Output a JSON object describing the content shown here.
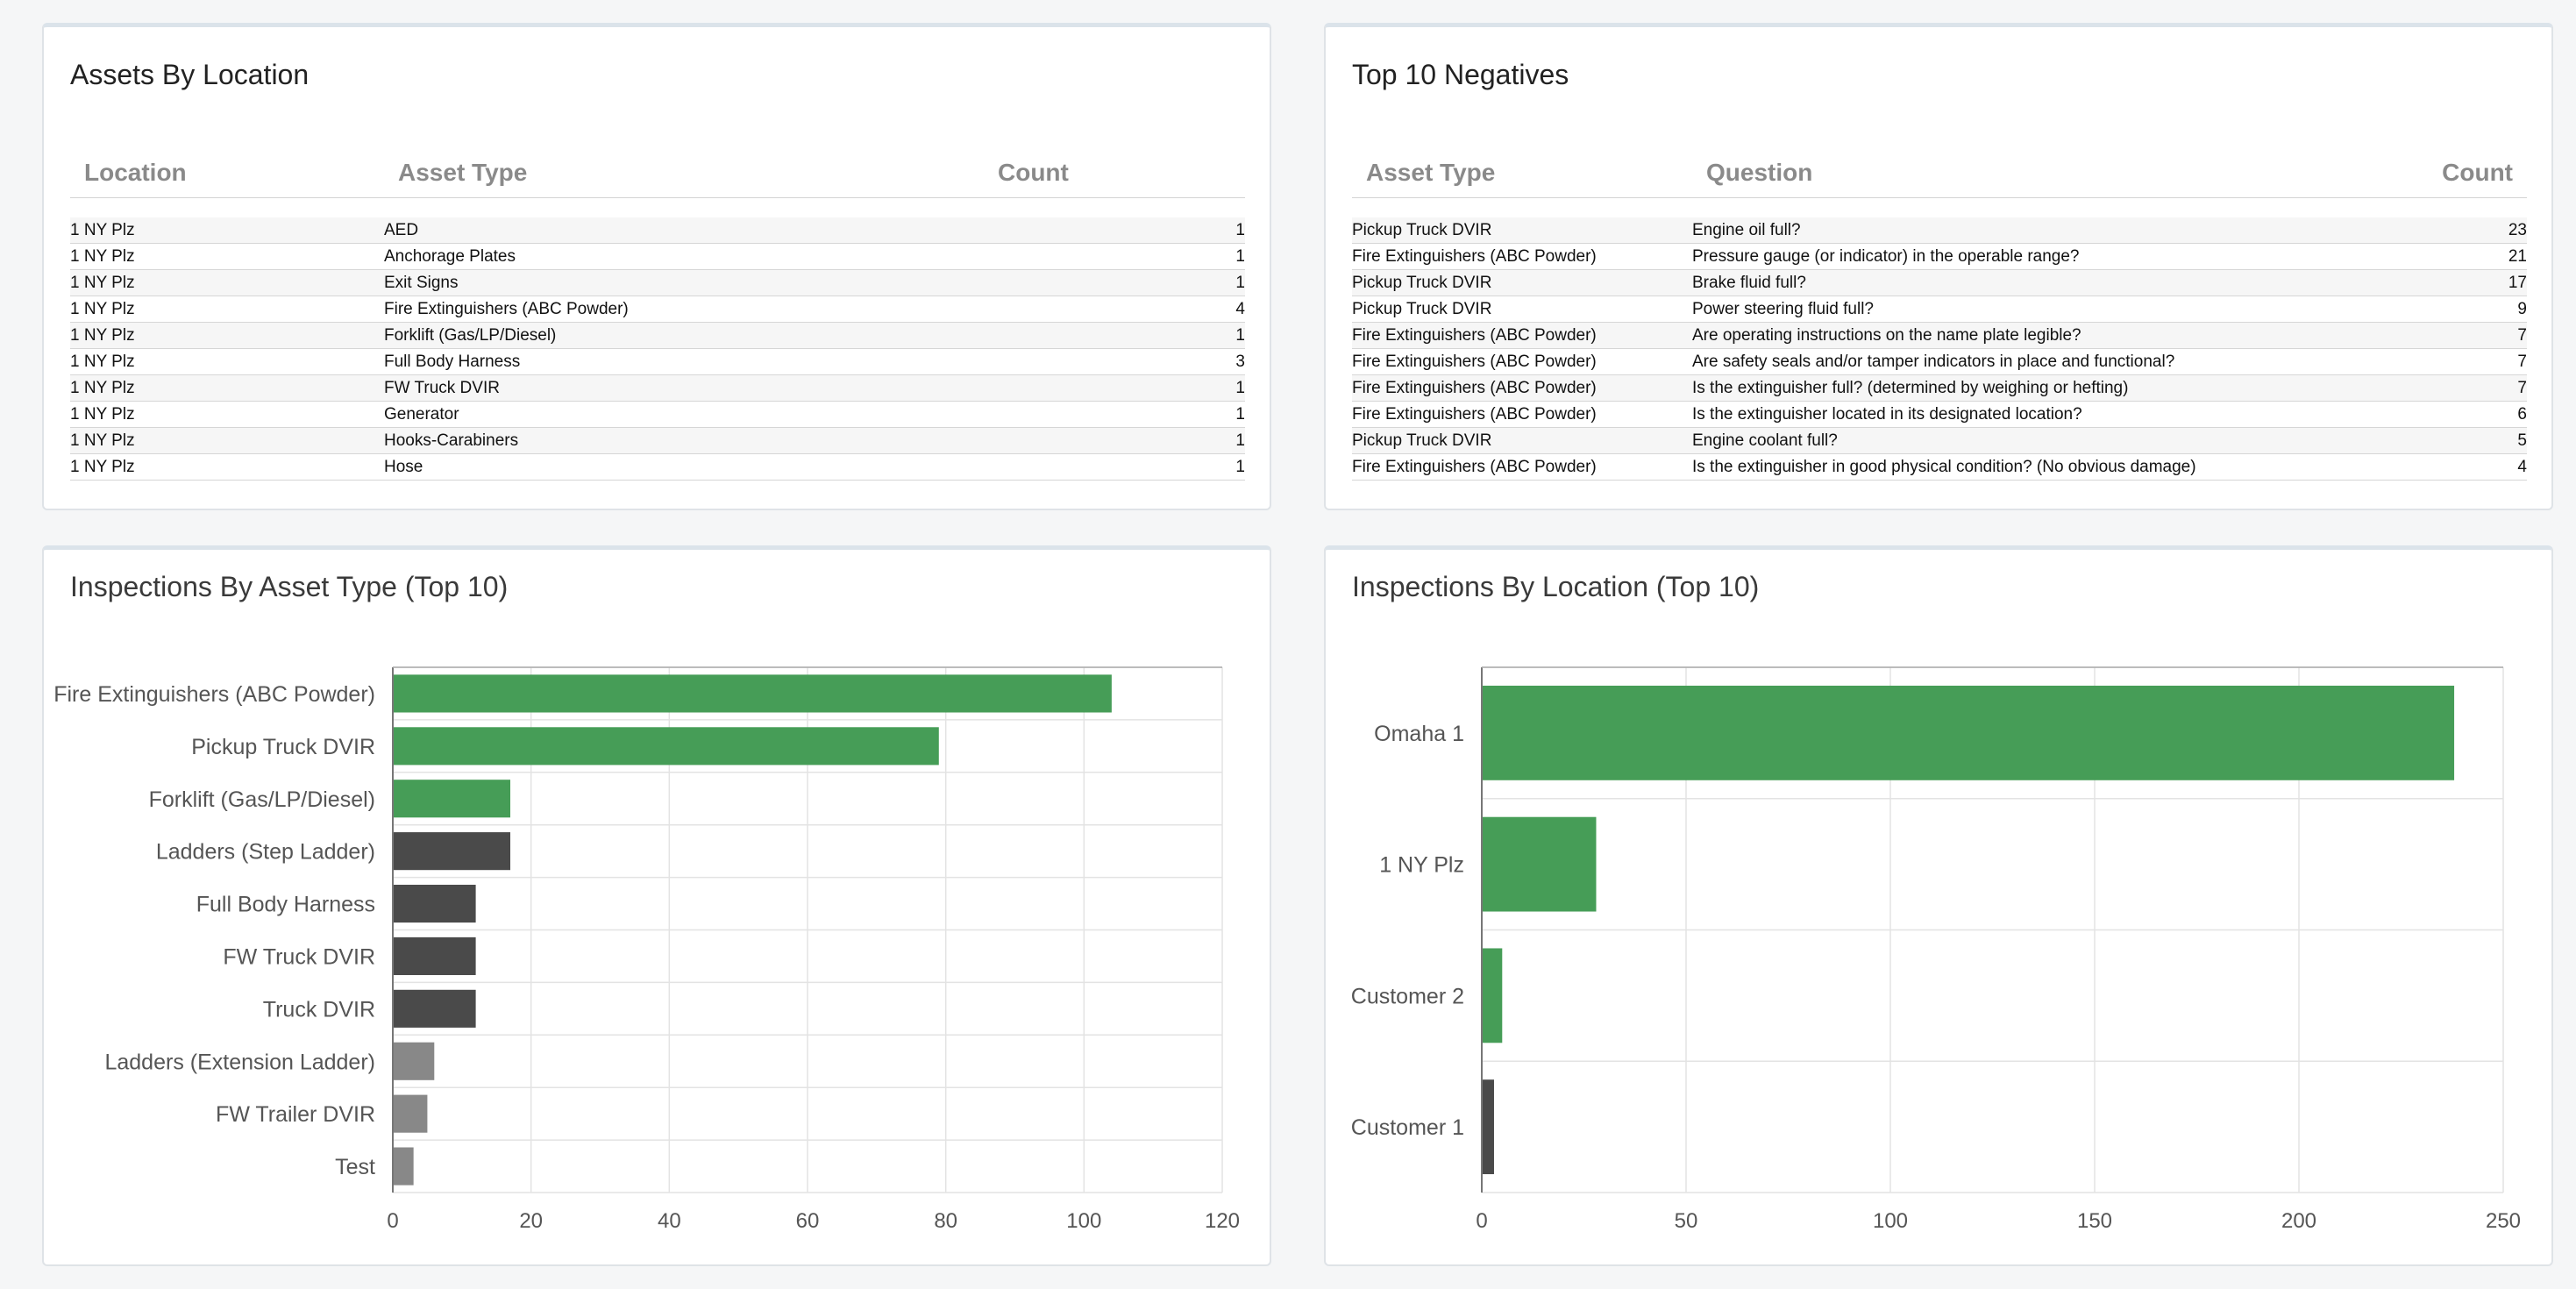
{
  "assets_by_location": {
    "title": "Assets By Location",
    "columns": [
      "Location",
      "Asset Type",
      "Count"
    ],
    "rows": [
      [
        "1 NY Plz",
        "AED",
        "1"
      ],
      [
        "1 NY Plz",
        "Anchorage Plates",
        "1"
      ],
      [
        "1 NY Plz",
        "Exit Signs",
        "1"
      ],
      [
        "1 NY Plz",
        "Fire Extinguishers (ABC Powder)",
        "4"
      ],
      [
        "1 NY Plz",
        "Forklift (Gas/LP/Diesel)",
        "1"
      ],
      [
        "1 NY Plz",
        "Full Body Harness",
        "3"
      ],
      [
        "1 NY Plz",
        "FW Truck DVIR",
        "1"
      ],
      [
        "1 NY Plz",
        "Generator",
        "1"
      ],
      [
        "1 NY Plz",
        "Hooks-Carabiners",
        "1"
      ],
      [
        "1 NY Plz",
        "Hose",
        "1"
      ]
    ]
  },
  "top_negatives": {
    "title": "Top 10 Negatives",
    "columns": [
      "Asset Type",
      "Question",
      "Count"
    ],
    "rows": [
      [
        "Pickup Truck DVIR",
        "Engine oil full?",
        "23"
      ],
      [
        "Fire Extinguishers (ABC Powder)",
        "Pressure gauge (or indicator) in the operable range?",
        "21"
      ],
      [
        "Pickup Truck DVIR",
        "Brake fluid full?",
        "17"
      ],
      [
        "Pickup Truck DVIR",
        "Power steering fluid full?",
        "9"
      ],
      [
        "Fire Extinguishers (ABC Powder)",
        "Are operating instructions on the name plate legible?",
        "7"
      ],
      [
        "Fire Extinguishers (ABC Powder)",
        "Are safety seals and/or tamper indicators in place and functional?",
        "7"
      ],
      [
        "Fire Extinguishers (ABC Powder)",
        "Is the extinguisher full? (determined by weighing or hefting)",
        "7"
      ],
      [
        "Fire Extinguishers (ABC Powder)",
        "Is the extinguisher located in its designated location?",
        "6"
      ],
      [
        "Pickup Truck DVIR",
        "Engine coolant full?",
        "5"
      ],
      [
        "Fire Extinguishers (ABC Powder)",
        "Is the extinguisher in good physical condition? (No obvious damage)",
        "4"
      ]
    ]
  },
  "inspections_by_asset_type": {
    "title": "Inspections By Asset Type (Top 10)"
  },
  "inspections_by_location": {
    "title": "Inspections By Location (Top 10)"
  },
  "colors": {
    "green": "#469d57",
    "dark": "#4a4a4a",
    "gray": "#888888",
    "grid": "#e3e3e3",
    "axis_text": "#555555"
  },
  "chart_data": [
    {
      "type": "bar",
      "orientation": "horizontal",
      "title": "Inspections By Asset Type (Top 10)",
      "categories": [
        "Fire Extinguishers (ABC Powder)",
        "Pickup Truck DVIR",
        "Forklift (Gas/LP/Diesel)",
        "Ladders (Step Ladder)",
        "Full Body Harness",
        "FW Truck DVIR",
        "Truck DVIR",
        "Ladders (Extension Ladder)",
        "FW Trailer DVIR",
        "Test"
      ],
      "values": [
        104,
        79,
        17,
        17,
        12,
        12,
        12,
        6,
        5,
        3
      ],
      "bar_colors": [
        "green",
        "green",
        "green",
        "dark",
        "dark",
        "dark",
        "dark",
        "gray",
        "gray",
        "gray"
      ],
      "xlim": [
        0,
        120
      ],
      "xticks": [
        0,
        20,
        40,
        60,
        80,
        100,
        120
      ],
      "grid": true,
      "legend": "none"
    },
    {
      "type": "bar",
      "orientation": "horizontal",
      "title": "Inspections By Location (Top 10)",
      "categories": [
        "Omaha 1",
        "1 NY Plz",
        "Customer 2",
        "Customer 1"
      ],
      "values": [
        238,
        28,
        5,
        3
      ],
      "bar_colors": [
        "green",
        "green",
        "green",
        "dark"
      ],
      "xlim": [
        0,
        250
      ],
      "xticks": [
        0,
        50,
        100,
        150,
        200,
        250
      ],
      "grid": true,
      "legend": "none"
    }
  ]
}
